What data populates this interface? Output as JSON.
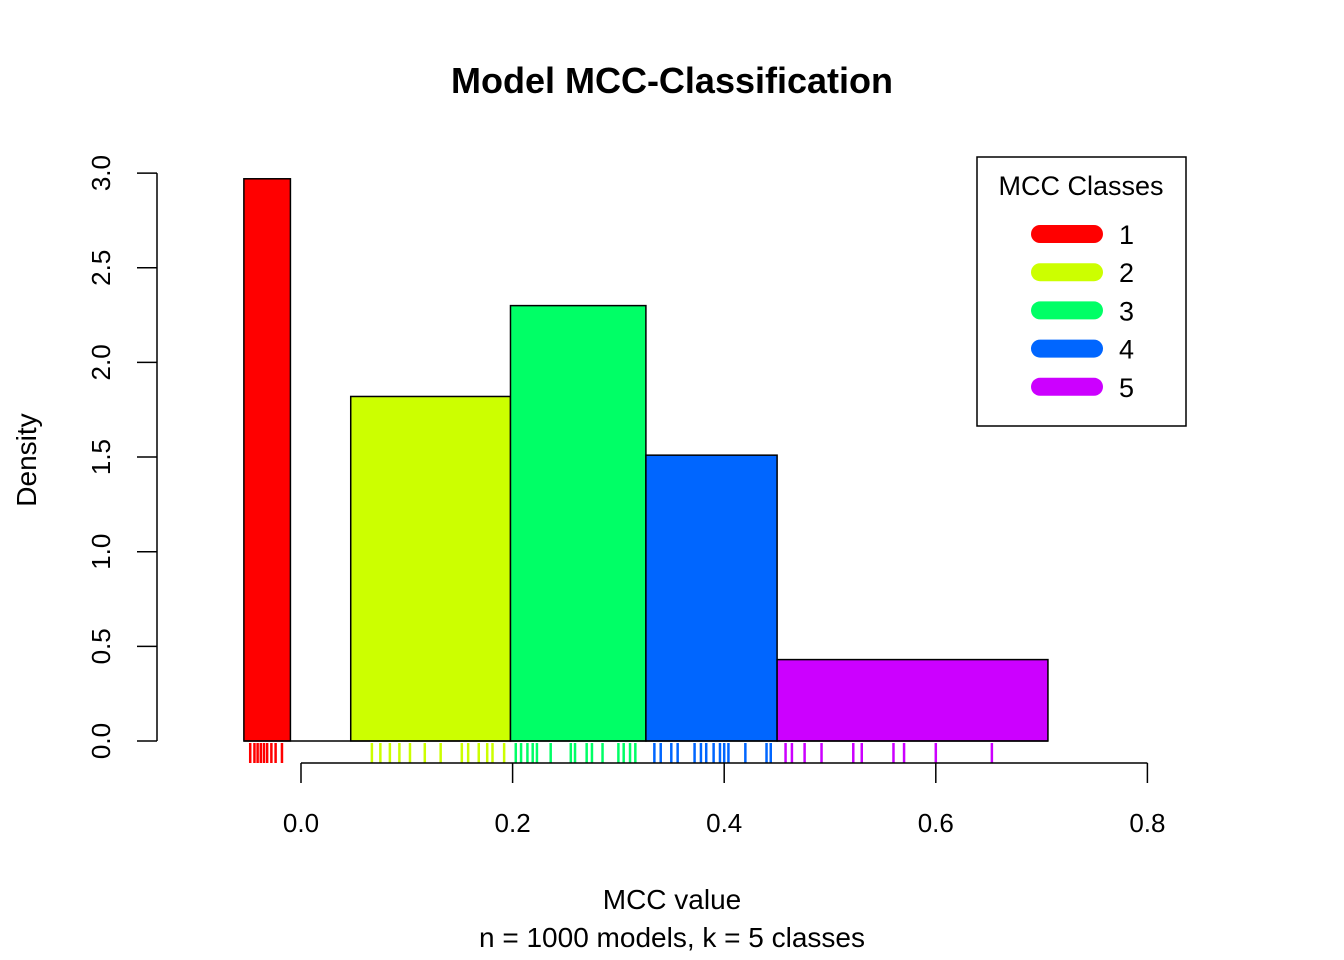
{
  "chart_data": {
    "type": "bar",
    "title": "Model MCC-Classification",
    "xlabel": "MCC value",
    "subtitle": "n = 1000 models, k = 5 classes",
    "ylabel": "Density",
    "xlim": [
      -0.15,
      0.8
    ],
    "ylim": [
      0,
      3.0
    ],
    "x_ticks": [
      0.0,
      0.2,
      0.4,
      0.6,
      0.8
    ],
    "x_tick_labels": [
      "0.0",
      "0.2",
      "0.4",
      "0.6",
      "0.8"
    ],
    "y_ticks": [
      0.0,
      0.5,
      1.0,
      1.5,
      2.0,
      2.5,
      3.0
    ],
    "y_tick_labels": [
      "0.0",
      "0.5",
      "1.0",
      "1.5",
      "2.0",
      "2.5",
      "3.0"
    ],
    "bins": [
      {
        "class": "1",
        "xmin": -0.054,
        "xmax": -0.01,
        "density": 2.97,
        "color": "#FF0000"
      },
      {
        "class": "2",
        "xmin": 0.047,
        "xmax": 0.198,
        "density": 1.82,
        "color": "#CCFF00"
      },
      {
        "class": "3",
        "xmin": 0.198,
        "xmax": 0.326,
        "density": 2.3,
        "color": "#00FF66"
      },
      {
        "class": "4",
        "xmin": 0.326,
        "xmax": 0.45,
        "density": 1.51,
        "color": "#0066FF"
      },
      {
        "class": "5",
        "xmin": 0.45,
        "xmax": 0.706,
        "density": 0.43,
        "color": "#CC00FF"
      }
    ],
    "rug": [
      {
        "class": "1",
        "color": "#FF0000",
        "values": [
          -0.048,
          -0.044,
          -0.041,
          -0.038,
          -0.035,
          -0.032,
          -0.028,
          -0.024,
          -0.018
        ]
      },
      {
        "class": "2",
        "color": "#CCFF00",
        "values": [
          0.067,
          0.075,
          0.084,
          0.093,
          0.103,
          0.117,
          0.132,
          0.152,
          0.158,
          0.168,
          0.176,
          0.181,
          0.192
        ]
      },
      {
        "class": "3",
        "color": "#00FF66",
        "values": [
          0.203,
          0.208,
          0.214,
          0.219,
          0.223,
          0.236,
          0.255,
          0.259,
          0.27,
          0.275,
          0.285,
          0.3,
          0.305,
          0.311,
          0.316
        ]
      },
      {
        "class": "4",
        "color": "#0066FF",
        "values": [
          0.334,
          0.34,
          0.35,
          0.356,
          0.372,
          0.378,
          0.383,
          0.39,
          0.396,
          0.4,
          0.404,
          0.42,
          0.44,
          0.444
        ]
      },
      {
        "class": "5",
        "color": "#CC00FF",
        "values": [
          0.458,
          0.464,
          0.476,
          0.492,
          0.522,
          0.53,
          0.56,
          0.57,
          0.6,
          0.653
        ]
      }
    ],
    "legend": {
      "title": "MCC Classes",
      "position": "top-right",
      "entries": [
        {
          "label": "1",
          "color": "#FF0000"
        },
        {
          "label": "2",
          "color": "#CCFF00"
        },
        {
          "label": "3",
          "color": "#00FF66"
        },
        {
          "label": "4",
          "color": "#0066FF"
        },
        {
          "label": "5",
          "color": "#CC00FF"
        }
      ]
    }
  }
}
